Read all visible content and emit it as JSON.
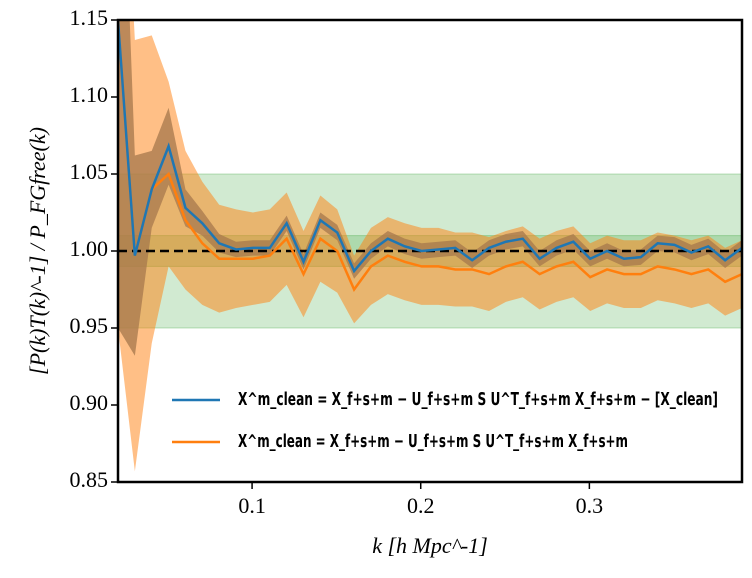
{
  "chart_data": {
    "type": "line",
    "xlabel": "k [h Mpc^-1]",
    "ylabel": "[P(k)T(k)^-1] / P_FGfree(k)",
    "x": [
      0.0205,
      0.0305,
      0.0405,
      0.0505,
      0.0605,
      0.0705,
      0.0805,
      0.0905,
      0.1005,
      0.1105,
      0.1205,
      0.1305,
      0.1405,
      0.1505,
      0.1605,
      0.1705,
      0.1805,
      0.1905,
      0.2005,
      0.2105,
      0.2205,
      0.2305,
      0.2405,
      0.2505,
      0.2605,
      0.2705,
      0.2805,
      0.2905,
      0.3005,
      0.3105,
      0.3205,
      0.3305,
      0.3405,
      0.3505,
      0.3605,
      0.3705,
      0.3805,
      0.3905
    ],
    "series": [
      {
        "name": "X^m_clean = X_f+s+m − U_f+s+m S U^T_f+s+m X_f+s+m − [X_clean]",
        "color": "#1f77b4",
        "band_color": "#4c6f8a",
        "values": [
          1.15,
          0.997,
          1.04,
          1.068,
          1.028,
          1.018,
          1.005,
          1.001,
          1.002,
          1.002,
          1.018,
          0.993,
          1.02,
          1.012,
          0.987,
          1.0,
          1.008,
          1.003,
          1.0,
          1.001,
          1.002,
          0.994,
          1.002,
          1.006,
          1.008,
          0.995,
          1.002,
          1.006,
          0.995,
          1.0,
          0.995,
          0.996,
          1.005,
          1.004,
          0.999,
          1.003,
          0.994,
          1.002
        ],
        "errors": [
          0.2,
          0.065,
          0.025,
          0.025,
          0.012,
          0.008,
          0.006,
          0.005,
          0.005,
          0.005,
          0.005,
          0.005,
          0.005,
          0.005,
          0.005,
          0.005,
          0.005,
          0.005,
          0.005,
          0.005,
          0.005,
          0.005,
          0.005,
          0.005,
          0.005,
          0.005,
          0.005,
          0.005,
          0.005,
          0.005,
          0.005,
          0.005,
          0.005,
          0.005,
          0.005,
          0.005,
          0.005,
          0.005
        ]
      },
      {
        "name": "X^m_clean = X_f+s+m − U_f+s+m S U^T_f+s+m X_f+s+m",
        "color": "#ff7f0e",
        "band_color": "#ff7f0e",
        "values": [
          1.15,
          0.997,
          1.04,
          1.05,
          1.02,
          1.005,
          0.995,
          0.995,
          0.995,
          0.997,
          1.008,
          0.985,
          1.008,
          1.0,
          0.975,
          0.99,
          0.997,
          0.993,
          0.99,
          0.99,
          0.988,
          0.988,
          0.985,
          0.99,
          0.993,
          0.985,
          0.99,
          0.993,
          0.983,
          0.988,
          0.985,
          0.985,
          0.99,
          0.988,
          0.985,
          0.988,
          0.98,
          0.985
        ],
        "errors": [
          0.2,
          0.14,
          0.1,
          0.06,
          0.045,
          0.04,
          0.035,
          0.032,
          0.03,
          0.03,
          0.03,
          0.028,
          0.028,
          0.027,
          0.022,
          0.025,
          0.025,
          0.025,
          0.025,
          0.025,
          0.024,
          0.024,
          0.024,
          0.023,
          0.023,
          0.023,
          0.023,
          0.023,
          0.022,
          0.022,
          0.022,
          0.022,
          0.022,
          0.022,
          0.022,
          0.022,
          0.022,
          0.022
        ]
      }
    ],
    "bands": [
      {
        "lower": 0.95,
        "upper": 1.05,
        "color": "#2ca02c"
      },
      {
        "lower": 0.99,
        "upper": 1.01,
        "color": "#2ca02c"
      }
    ],
    "reference_line": 1.0,
    "xlim": [
      0.0205,
      0.3905
    ],
    "xticks": [
      0.1,
      0.2,
      0.3
    ],
    "ylim": [
      0.85,
      1.15
    ],
    "yticks": [
      {
        "value": 0.85,
        "label": "0.85"
      },
      {
        "value": 0.9,
        "label": "0.90"
      },
      {
        "value": 0.95,
        "label": "0.95"
      },
      {
        "value": 1.0,
        "label": "1.00"
      },
      {
        "value": 1.05,
        "label": "1.05"
      },
      {
        "value": 1.1,
        "label": "1.10"
      },
      {
        "value": 1.15,
        "label": "1.15"
      }
    ],
    "legend": "lower right"
  }
}
